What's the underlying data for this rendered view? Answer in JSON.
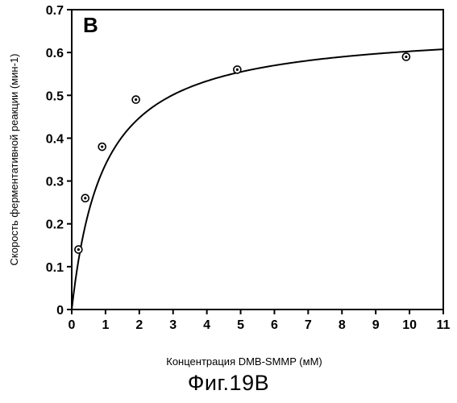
{
  "panel_label": "B",
  "caption": "Фиг.19В",
  "chart_data": {
    "type": "scatter",
    "title": "",
    "xlabel": "Концентрация DMB-SMMP (мМ)",
    "ylabel": "Скорость ферментативной реакции (мин-1)",
    "xlim": [
      0,
      11
    ],
    "ylim": [
      0,
      0.7
    ],
    "x_ticks": [
      "0",
      "1",
      "2",
      "3",
      "4",
      "5",
      "6",
      "7",
      "8",
      "9",
      "10",
      "11"
    ],
    "y_ticks": [
      "0",
      "0.1",
      "0.2",
      "0.3",
      "0.4",
      "0.5",
      "0.6",
      "0.7"
    ],
    "series": [
      {
        "marker": "circle-dot",
        "x": [
          0.2,
          0.4,
          0.9,
          1.9,
          4.9,
          9.9
        ],
        "y": [
          0.14,
          0.26,
          0.38,
          0.49,
          0.56,
          0.59
        ]
      }
    ],
    "fit_curve": {
      "kind": "saturation",
      "vmax": 0.66,
      "km": 0.95,
      "x_range": [
        0,
        11
      ]
    },
    "grid": false,
    "legend": "none"
  }
}
